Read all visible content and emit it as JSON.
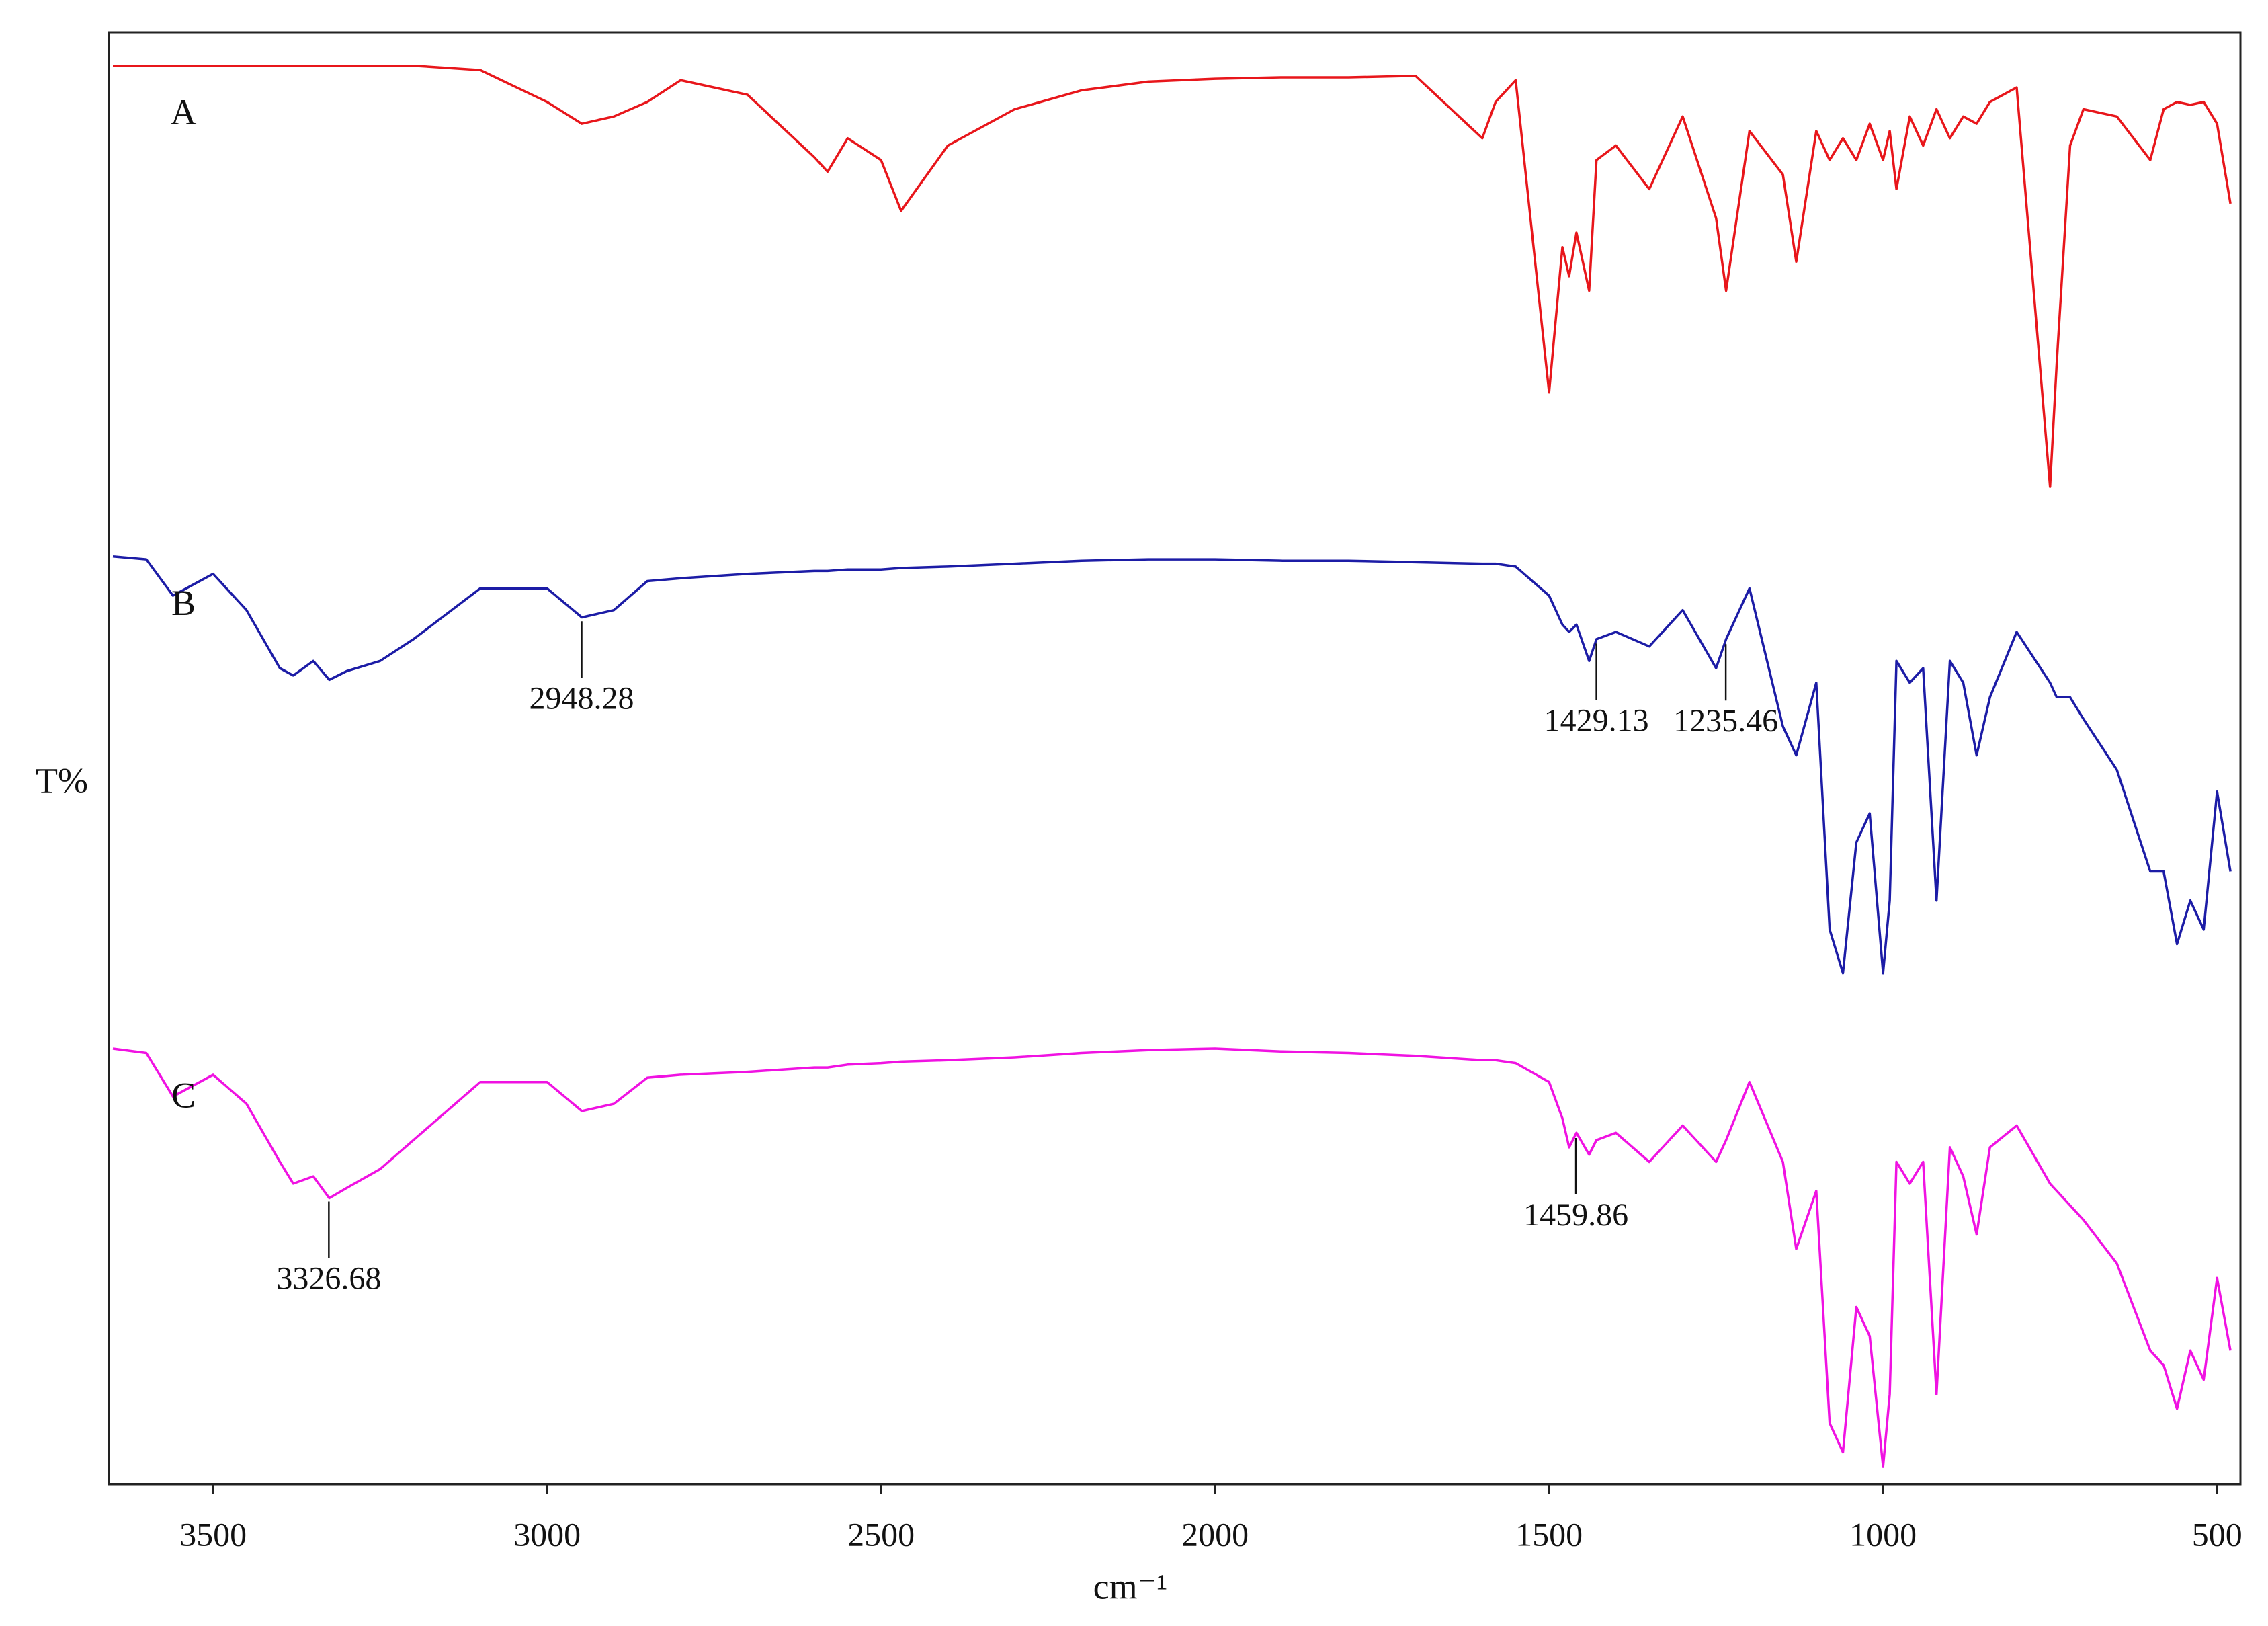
{
  "chart_data": {
    "type": "line",
    "x_label": "cm⁻¹",
    "y_label": "T%",
    "xlim": [
      3656,
      465
    ],
    "ylim": [
      0,
      100
    ],
    "xticks": [
      3500,
      3000,
      2500,
      2000,
      1500,
      1000,
      500
    ],
    "x": [
      3650,
      3600,
      3560,
      3500,
      3450,
      3400,
      3380,
      3350,
      3326,
      3300,
      3250,
      3200,
      3100,
      3000,
      2948,
      2900,
      2850,
      2800,
      2700,
      2600,
      2580,
      2550,
      2500,
      2470,
      2400,
      2300,
      2200,
      2100,
      2000,
      1900,
      1800,
      1700,
      1600,
      1580,
      1550,
      1500,
      1480,
      1470,
      1459,
      1440,
      1429,
      1400,
      1350,
      1300,
      1250,
      1235,
      1200,
      1150,
      1130,
      1100,
      1080,
      1060,
      1040,
      1020,
      1000,
      990,
      980,
      960,
      940,
      920,
      900,
      880,
      860,
      840,
      800,
      750,
      740,
      720,
      700,
      650,
      600,
      580,
      560,
      540,
      520,
      500,
      480
    ],
    "series": [
      {
        "name": "A",
        "color": "#e8161b",
        "peaks": [],
        "values": [
          97.7,
          97.7,
          97.7,
          97.7,
          97.7,
          97.7,
          97.7,
          97.7,
          97.7,
          97.7,
          97.7,
          97.7,
          97.4,
          95.2,
          93.7,
          94.2,
          95.2,
          96.7,
          95.7,
          91.4,
          90.4,
          92.7,
          91.2,
          87.7,
          92.2,
          94.7,
          96,
          96.6,
          96.8,
          96.9,
          96.9,
          97,
          92.7,
          95.2,
          96.7,
          75.2,
          85.2,
          83.2,
          86.2,
          82.2,
          91.2,
          92.2,
          89.2,
          94.2,
          87.2,
          82.2,
          93.2,
          90.2,
          84.2,
          93.2,
          91.2,
          92.7,
          91.2,
          93.7,
          91.2,
          93.2,
          89.2,
          94.2,
          92.2,
          94.7,
          92.7,
          94.2,
          93.7,
          95.2,
          96.2,
          68.7,
          77.2,
          92.2,
          94.7,
          94.2,
          91.2,
          94.7,
          95.2,
          95,
          95.2,
          93.7,
          88.2
        ]
      },
      {
        "name": "B",
        "color": "#1c1ca6",
        "peaks": [
          2948.28,
          1429.13,
          1235.46
        ],
        "values": [
          63.9,
          63.7,
          61.2,
          62.7,
          60.2,
          56.2,
          55.7,
          56.7,
          55.4,
          56,
          56.7,
          58.2,
          61.7,
          61.7,
          59.7,
          60.2,
          62.2,
          62.4,
          62.7,
          62.9,
          62.9,
          63,
          63,
          63.1,
          63.2,
          63.4,
          63.6,
          63.7,
          63.7,
          63.6,
          63.6,
          63.5,
          63.4,
          63.4,
          63.2,
          61.2,
          59.2,
          58.7,
          59.2,
          56.7,
          58.2,
          58.7,
          57.7,
          60.2,
          56.2,
          58.2,
          61.7,
          52.2,
          50.2,
          55.2,
          38.2,
          35.2,
          44.2,
          46.2,
          35.2,
          40.2,
          56.7,
          55.2,
          56.2,
          40.2,
          56.7,
          55.2,
          50.2,
          54.2,
          58.7,
          55.2,
          54.2,
          54.2,
          52.7,
          49.2,
          42.2,
          42.2,
          37.2,
          40.2,
          38.2,
          47.7,
          42.2
        ]
      },
      {
        "name": "C",
        "color": "#f012e2",
        "peaks": [
          3326.68,
          1459.86
        ],
        "values": [
          30,
          29.7,
          26.7,
          28.2,
          26.2,
          22.2,
          20.7,
          21.2,
          19.7,
          20.4,
          21.7,
          23.7,
          27.7,
          27.7,
          25.7,
          26.2,
          28,
          28.2,
          28.4,
          28.7,
          28.7,
          28.9,
          29,
          29.1,
          29.2,
          29.4,
          29.7,
          29.9,
          30,
          29.8,
          29.7,
          29.5,
          29.2,
          29.2,
          29,
          27.7,
          25.2,
          23.2,
          24.2,
          22.7,
          23.7,
          24.2,
          22.2,
          24.7,
          22.2,
          23.7,
          27.7,
          22.2,
          16.2,
          20.2,
          4.2,
          2.2,
          12.2,
          10.2,
          1.2,
          6.2,
          22.2,
          20.7,
          22.2,
          6.2,
          23.2,
          21.2,
          17.2,
          23.2,
          24.7,
          20.7,
          20.2,
          19.2,
          18.2,
          15.2,
          9.2,
          8.2,
          5.2,
          9.2,
          7.2,
          14.2,
          9.2
        ]
      }
    ]
  }
}
